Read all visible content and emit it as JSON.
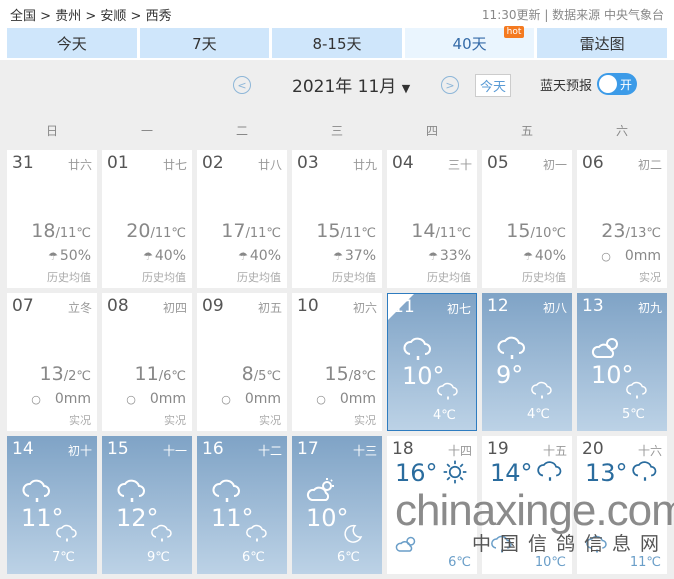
{
  "breadcrumb": [
    "全国",
    "贵州",
    "安顺",
    "西秀"
  ],
  "source": "11:30更新 | 数据来源 中央气象台",
  "tabs": [
    {
      "label": "今天"
    },
    {
      "label": "7天"
    },
    {
      "label": "8-15天"
    },
    {
      "label": "40天",
      "active": true,
      "badge": "hot"
    },
    {
      "label": "雷达图"
    }
  ],
  "controls": {
    "month": "2021年 11月",
    "today": "今天",
    "blue_sky": "蓝天预报",
    "toggle": "开",
    "toggle_on": true
  },
  "weekdays": [
    "日",
    "一",
    "二",
    "三",
    "四",
    "五",
    "六"
  ],
  "colors": {
    "accent": "#3c9be8",
    "forecast_bg": "#7fa3c6"
  },
  "days": [
    {
      "d": "31",
      "lunar": "廿六",
      "hi": "18",
      "lo": "11℃",
      "rain": "50%",
      "rain_icon": "umbrella-icon",
      "note": "历史均值"
    },
    {
      "d": "01",
      "lunar": "廿七",
      "hi": "20",
      "lo": "11℃",
      "rain": "40%",
      "rain_icon": "umbrella-icon",
      "note": "历史均值"
    },
    {
      "d": "02",
      "lunar": "廿八",
      "hi": "17",
      "lo": "11℃",
      "rain": "40%",
      "rain_icon": "umbrella-icon",
      "note": "历史均值"
    },
    {
      "d": "03",
      "lunar": "廿九",
      "hi": "15",
      "lo": "11℃",
      "rain": "37%",
      "rain_icon": "umbrella-icon",
      "note": "历史均值"
    },
    {
      "d": "04",
      "lunar": "三十",
      "hi": "14",
      "lo": "11℃",
      "rain": "33%",
      "rain_icon": "umbrella-icon",
      "note": "历史均值"
    },
    {
      "d": "05",
      "lunar": "初一",
      "hi": "15",
      "lo": "10℃",
      "rain": "40%",
      "rain_icon": "umbrella-icon",
      "note": "历史均值"
    },
    {
      "d": "06",
      "lunar": "初二",
      "hi": "23",
      "lo": "13℃",
      "rain": "0mm",
      "rain_icon": "raindrop-icon",
      "note": "实况"
    },
    {
      "d": "07",
      "lunar": "立冬",
      "hi": "13",
      "lo": "2℃",
      "rain": "0mm",
      "rain_icon": "raindrop-icon",
      "note": "实况"
    },
    {
      "d": "08",
      "lunar": "初四",
      "hi": "11",
      "lo": "6℃",
      "rain": "0mm",
      "rain_icon": "raindrop-icon",
      "note": "实况"
    },
    {
      "d": "09",
      "lunar": "初五",
      "hi": "8",
      "lo": "5℃",
      "rain": "0mm",
      "rain_icon": "raindrop-icon",
      "note": "实况"
    },
    {
      "d": "10",
      "lunar": "初六",
      "hi": "15",
      "lo": "8℃",
      "rain": "0mm",
      "rain_icon": "raindrop-icon",
      "note": "实况"
    },
    {
      "d": "11",
      "lunar": "初七",
      "fc": true,
      "today": true,
      "hi": "10°",
      "lo": "4℃",
      "day_icon": "rain",
      "night_icon": "rain"
    },
    {
      "d": "12",
      "lunar": "初八",
      "fc": true,
      "hi": "9°",
      "lo": "4℃",
      "day_icon": "rain",
      "night_icon": "rain"
    },
    {
      "d": "13",
      "lunar": "初九",
      "fc": true,
      "hi": "10°",
      "lo": "5℃",
      "day_icon": "cloudy",
      "night_icon": "rain"
    },
    {
      "d": "14",
      "lunar": "初十",
      "fc": true,
      "hi": "11°",
      "lo": "7℃",
      "day_icon": "rain",
      "night_icon": "rain"
    },
    {
      "d": "15",
      "lunar": "十一",
      "fc": true,
      "hi": "12°",
      "lo": "9℃",
      "day_icon": "rain",
      "night_icon": "rain"
    },
    {
      "d": "16",
      "lunar": "十二",
      "fc": true,
      "hi": "11°",
      "lo": "6℃",
      "day_icon": "rain",
      "night_icon": "rain"
    },
    {
      "d": "17",
      "lunar": "十三",
      "fc": true,
      "hi": "10°",
      "lo": "6℃",
      "day_icon": "partly-sunny",
      "night_icon": "moon"
    },
    {
      "d": "18",
      "lunar": "十四",
      "wf": true,
      "hi": "16°",
      "lo": "6℃",
      "day_icon": "sunny",
      "night_icon": "cloudy"
    },
    {
      "d": "19",
      "lunar": "十五",
      "wf": true,
      "hi": "14°",
      "lo": "10℃",
      "day_icon": "rain",
      "night_icon": "rain"
    },
    {
      "d": "20",
      "lunar": "十六",
      "wf": true,
      "hi": "13°",
      "lo": "11℃",
      "day_icon": "rain",
      "night_icon": "rain"
    }
  ],
  "watermark": {
    "text": "chinaxinge.com",
    "subtext": "中国信鸽信息网"
  }
}
